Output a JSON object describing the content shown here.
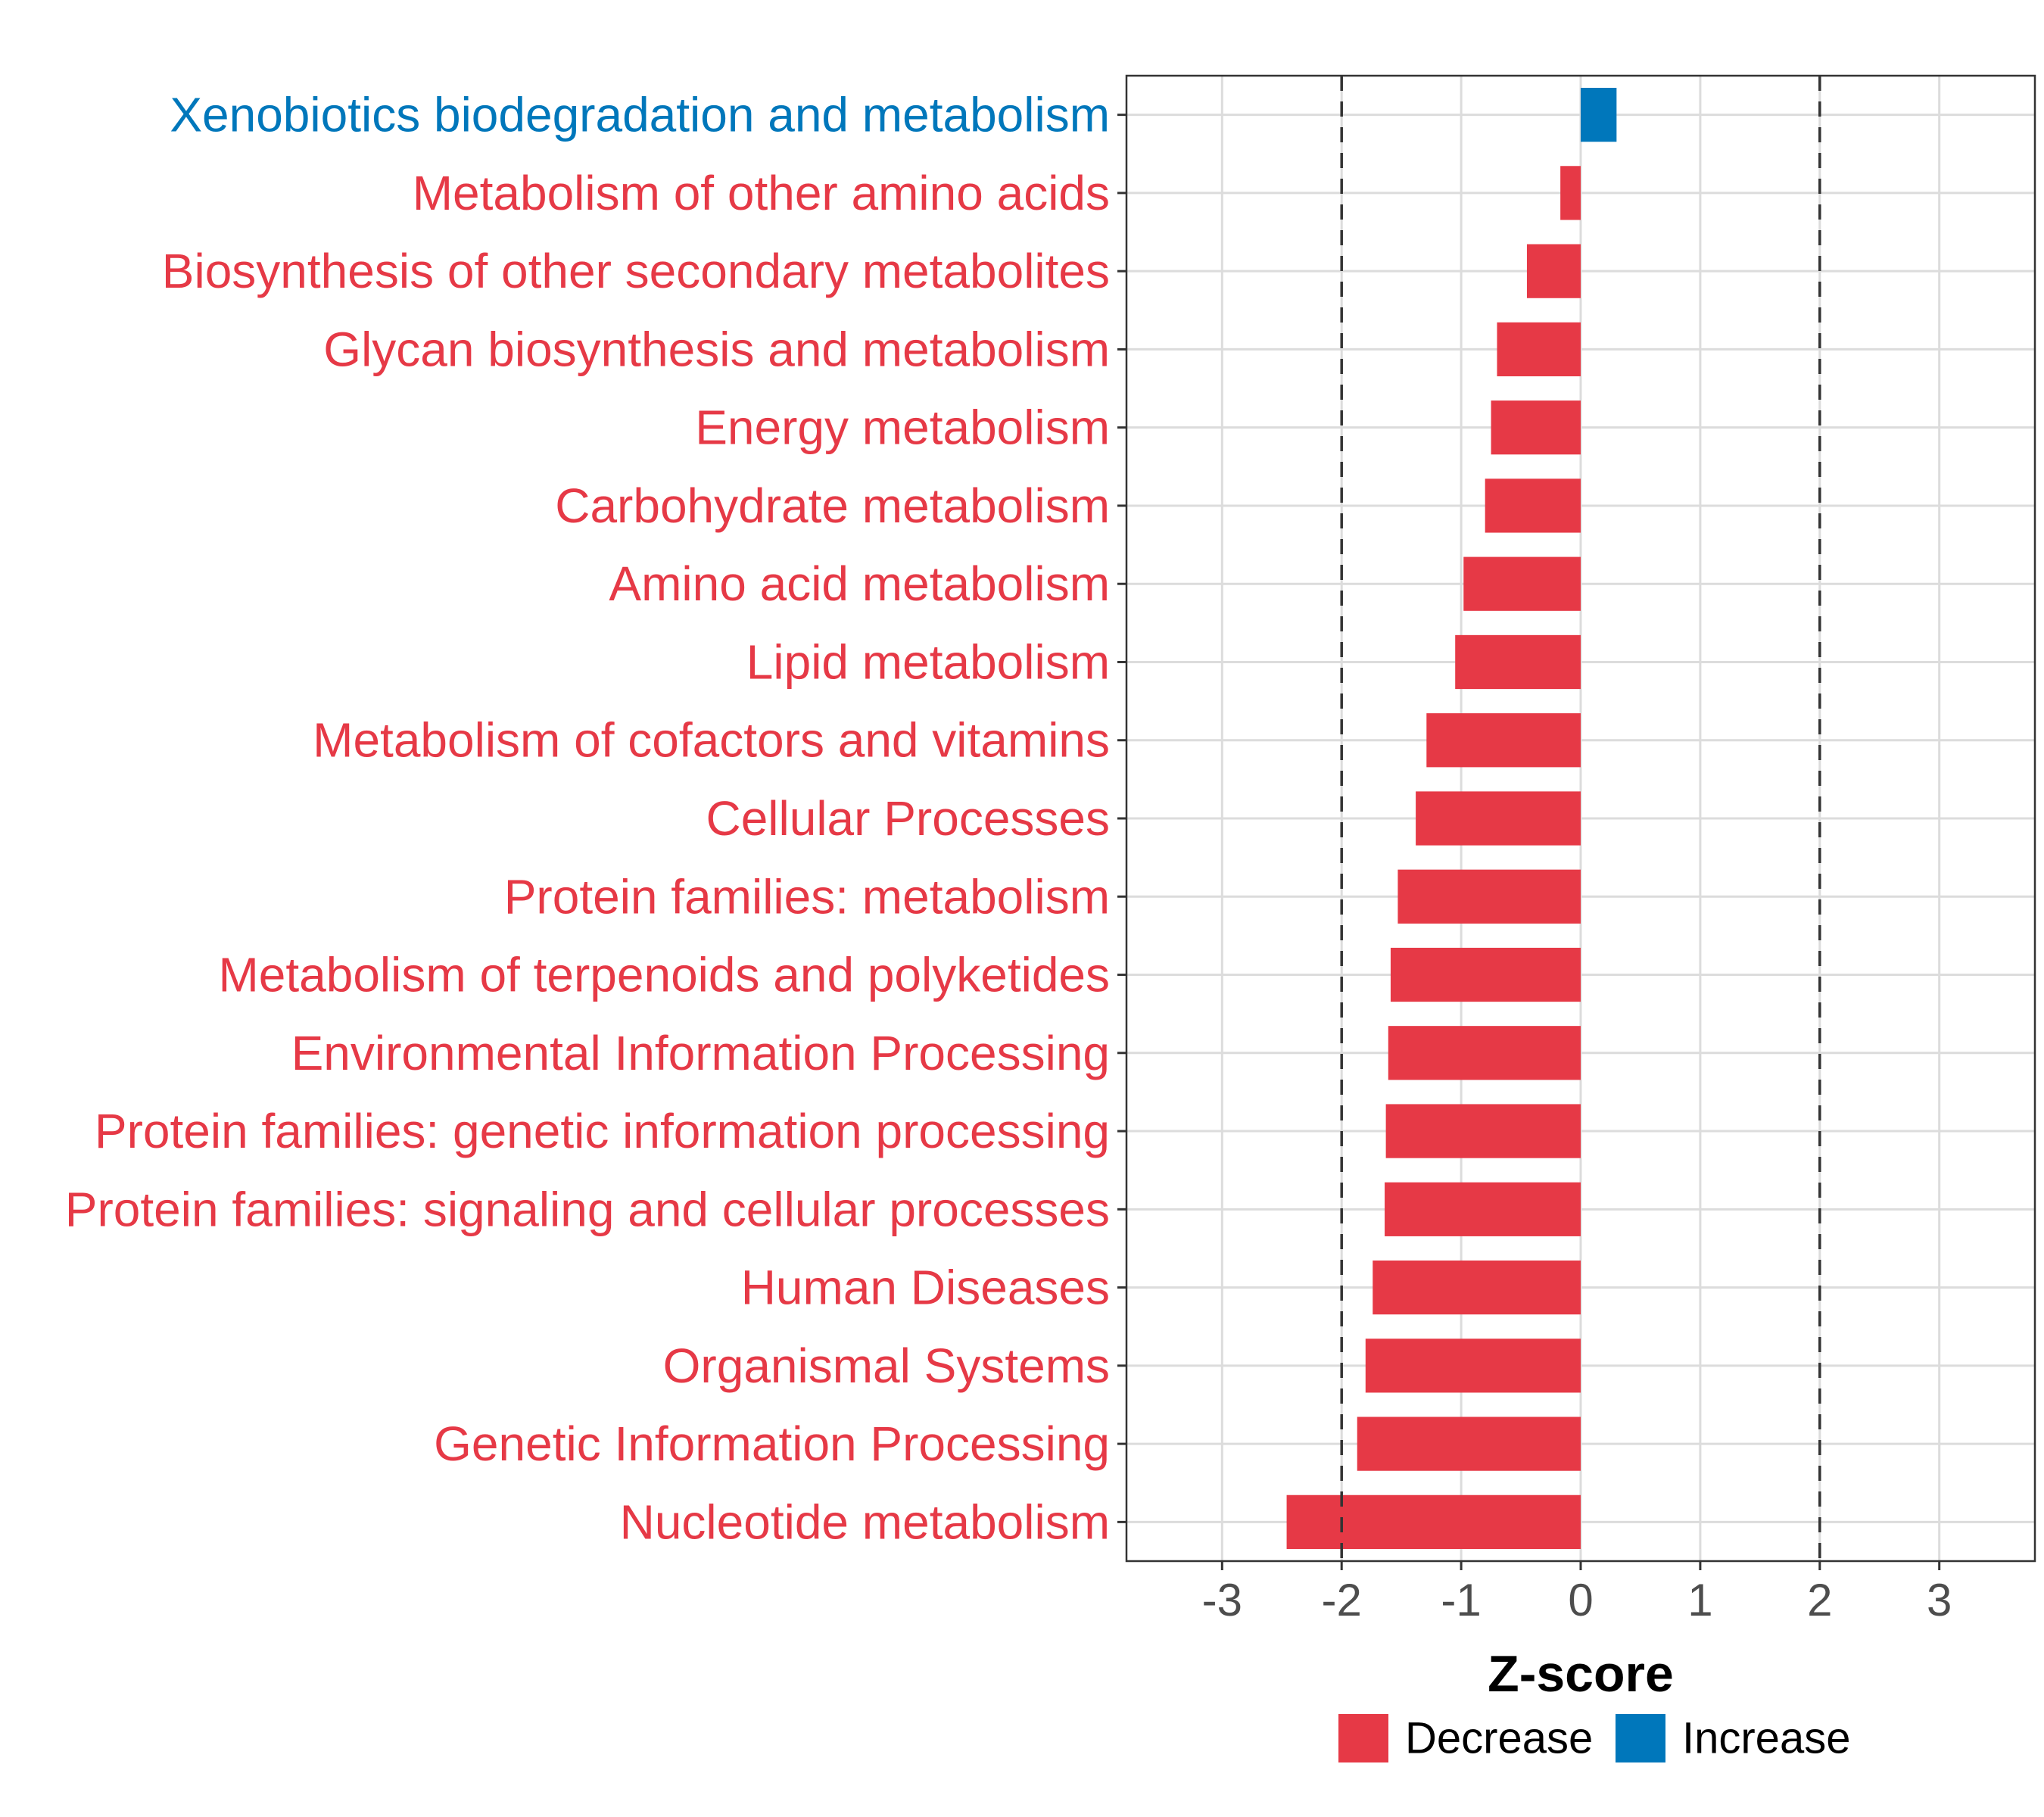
{
  "chart_data": {
    "type": "bar",
    "orientation": "horizontal",
    "xlabel": "Z-score",
    "xlim": [
      -3.8,
      3.8
    ],
    "xticks": [
      -3,
      -2,
      -1,
      0,
      1,
      2,
      3
    ],
    "xtick_labels": [
      "-3",
      "-2",
      "-1",
      "0",
      "1",
      "2",
      "3"
    ],
    "threshold_lines": [
      -2,
      2
    ],
    "grid": true,
    "categories": [
      "Xenobiotics biodegradation and metabolism",
      "Metabolism of other amino acids",
      "Biosynthesis of other secondary metabolites",
      "Glycan biosynthesis and metabolism",
      "Energy metabolism",
      "Carbohydrate metabolism",
      "Amino acid metabolism",
      "Lipid metabolism",
      "Metabolism of cofactors and vitamins",
      "Cellular Processes",
      "Protein families: metabolism",
      "Metabolism of terpenoids and polyketides",
      "Environmental Information Processing",
      "Protein families: genetic information processing",
      "Protein families: signaling and cellular processes",
      "Human Diseases",
      "Organismal Systems",
      "Genetic Information Processing",
      "Nucleotide metabolism"
    ],
    "values": [
      0.3,
      -0.17,
      -0.45,
      -0.7,
      -0.75,
      -0.8,
      -0.98,
      -1.05,
      -1.29,
      -1.38,
      -1.53,
      -1.59,
      -1.61,
      -1.63,
      -1.64,
      -1.74,
      -1.8,
      -1.87,
      -2.46
    ],
    "groups": [
      "Increase",
      "Decrease",
      "Decrease",
      "Decrease",
      "Decrease",
      "Decrease",
      "Decrease",
      "Decrease",
      "Decrease",
      "Decrease",
      "Decrease",
      "Decrease",
      "Decrease",
      "Decrease",
      "Decrease",
      "Decrease",
      "Decrease",
      "Decrease",
      "Decrease"
    ],
    "legend": {
      "placement": "bottom",
      "entries": [
        {
          "label": "Decrease",
          "color": "#e63946"
        },
        {
          "label": "Increase",
          "color": "#0077bb"
        }
      ]
    }
  }
}
